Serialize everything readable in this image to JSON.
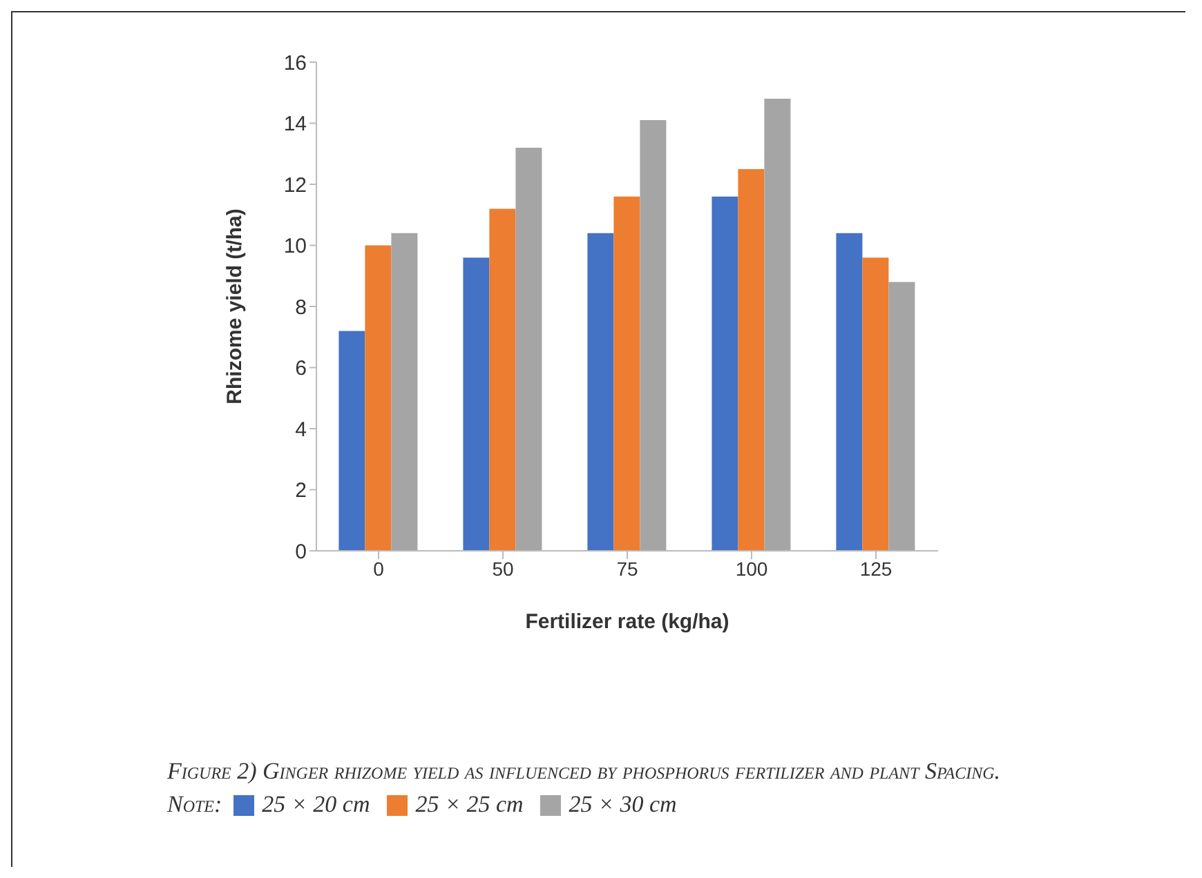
{
  "chart_data": {
    "type": "bar",
    "xlabel": "Fertilizer rate (kg/ha)",
    "ylabel": "Rhizome yield (t/ha)",
    "legend_title": "Note:",
    "annotations": [
      "Figure 2) Ginger rhizome yield as influenced by phosphorus fertilizer and plant Spacing."
    ],
    "categories": [
      "0",
      "50",
      "75",
      "100",
      "125"
    ],
    "series": [
      {
        "name": "25 × 20 cm",
        "color": "#4472c4",
        "values": [
          7.2,
          9.6,
          10.4,
          11.6,
          10.4
        ]
      },
      {
        "name": "25 × 25 cm",
        "color": "#ed7d31",
        "values": [
          10.0,
          11.2,
          11.6,
          12.5,
          9.6
        ]
      },
      {
        "name": "25 × 30 cm",
        "color": "#a5a5a5",
        "values": [
          10.4,
          13.2,
          14.1,
          14.8,
          8.8
        ]
      }
    ],
    "ylim": [
      0,
      16
    ],
    "yticks": [
      0,
      2,
      4,
      6,
      8,
      10,
      12,
      14,
      16
    ],
    "grid": false,
    "legend": "bottom"
  }
}
